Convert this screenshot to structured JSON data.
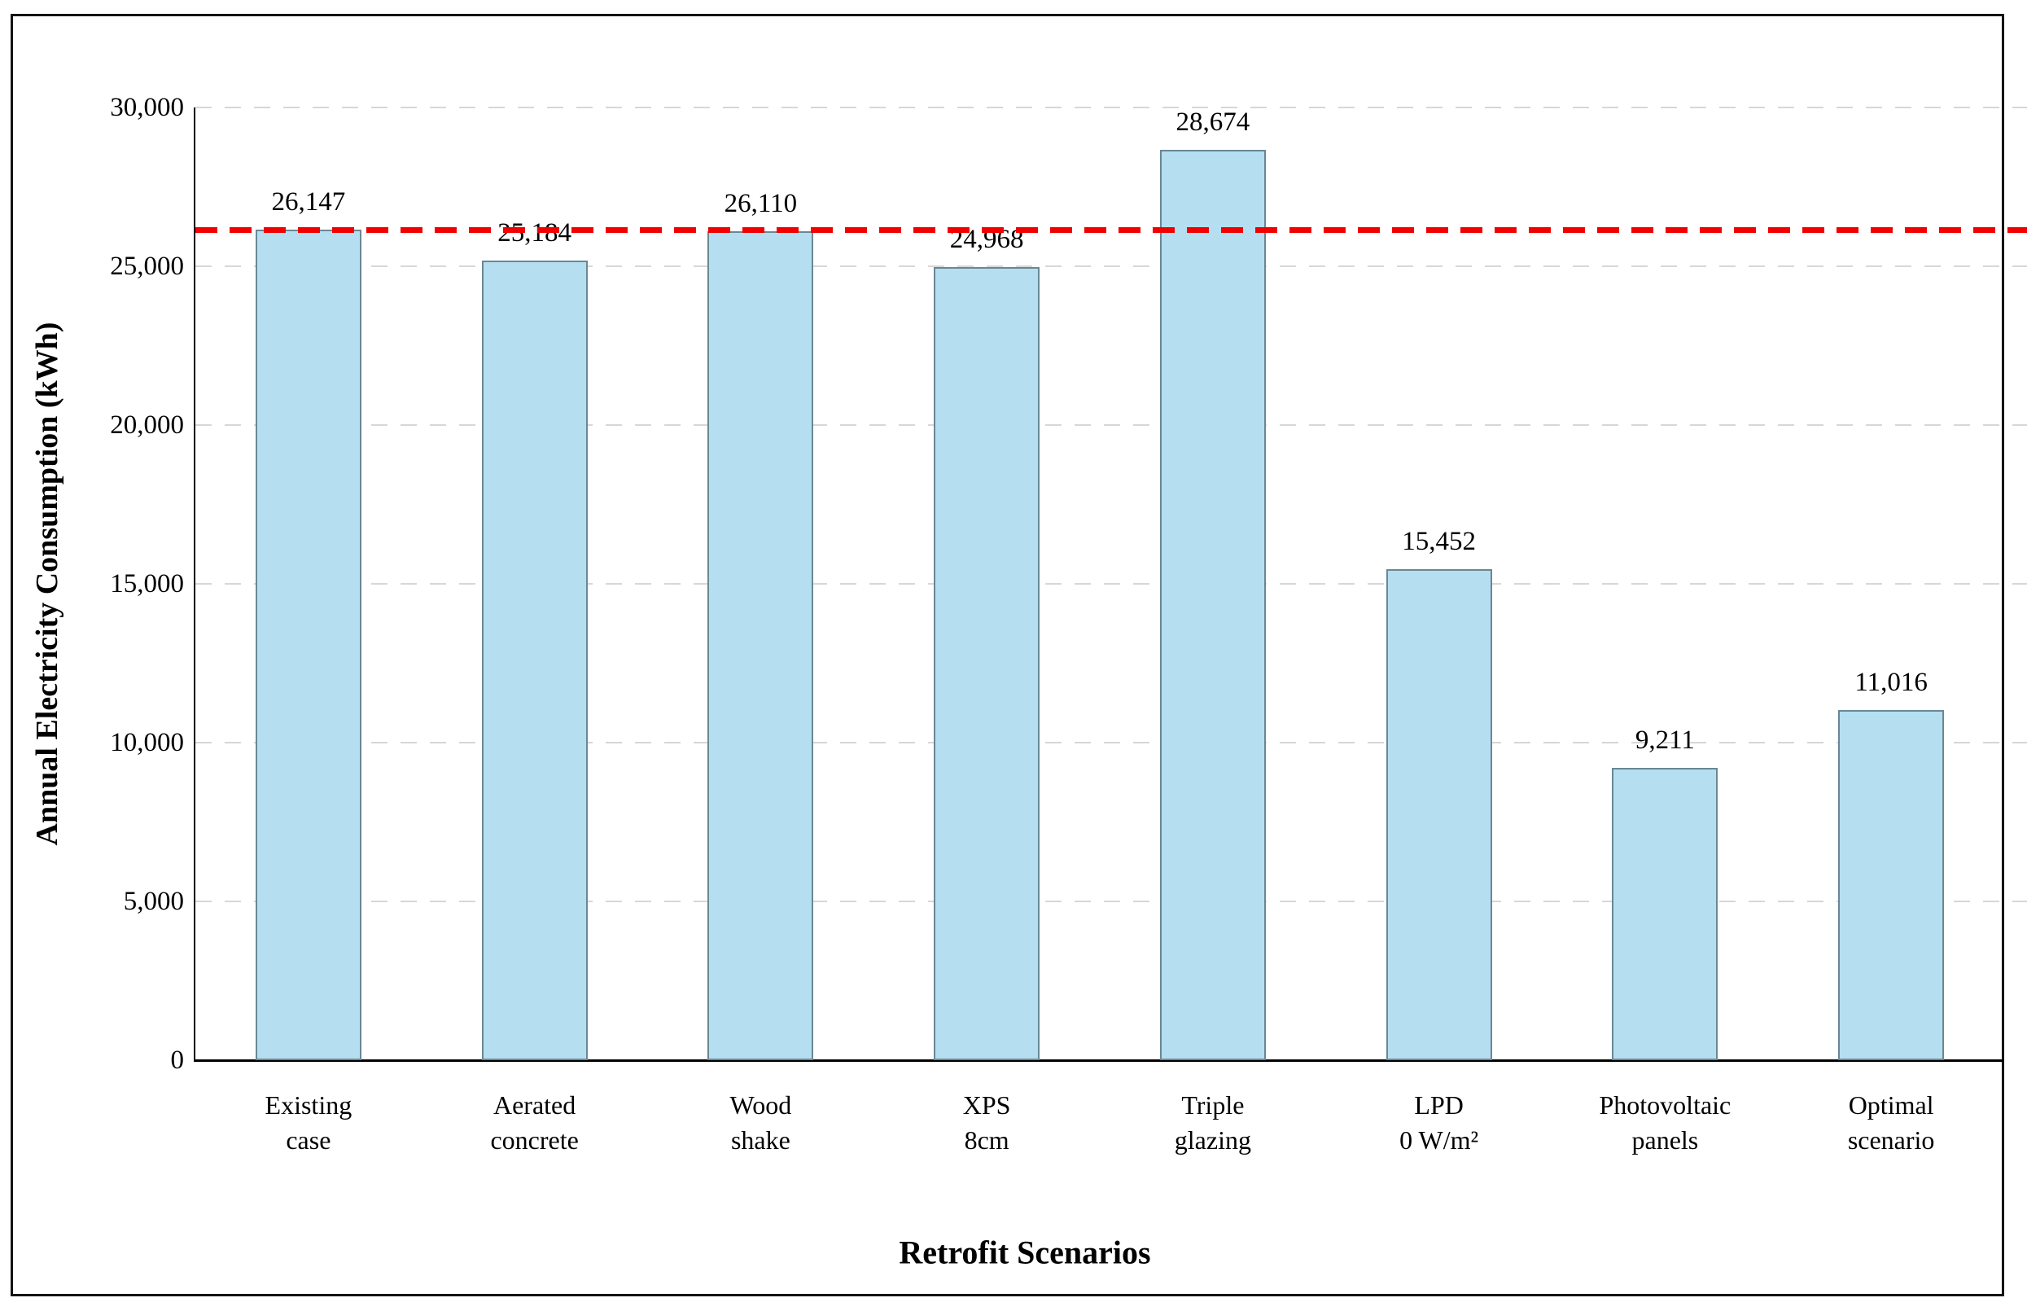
{
  "figure": {
    "background": "#FFFFFF",
    "border_color": "#141414"
  },
  "chart_data": {
    "type": "bar",
    "title": "",
    "xlabel": "Retrofit Scenarios",
    "ylabel": "Annual Electricity Consumption (kWh)",
    "categories": [
      [
        "Existing",
        "case"
      ],
      [
        "Aerated",
        "concrete"
      ],
      [
        "Wood",
        "shake"
      ],
      [
        "XPS",
        "8cm"
      ],
      [
        "Triple",
        "glazing"
      ],
      [
        "LPD",
        "0 W/m²"
      ],
      [
        "Photovoltaic",
        "panels"
      ],
      [
        "Optimal",
        "scenario"
      ]
    ],
    "values": [
      26147,
      25184,
      26110,
      24968,
      28674,
      15452,
      9211,
      11016
    ],
    "value_labels": [
      "26,147",
      "25,184",
      "26,110",
      "24,968",
      "28,674",
      "15,452",
      "9,211",
      "11,016"
    ],
    "ylim": [
      0,
      30000
    ],
    "yticks": [
      0,
      5000,
      10000,
      15000,
      20000,
      25000,
      30000
    ],
    "ytick_labels": [
      "0",
      "5,000",
      "10,000",
      "15,000",
      "20,000",
      "25,000",
      "30,000"
    ],
    "grid": {
      "axis": "y",
      "style": "dashed",
      "color": "#D7D7D7"
    },
    "legend": "none",
    "reference_line": {
      "value": 26147,
      "style": "dashed",
      "color": "#F20000"
    },
    "bar_style": {
      "fill": "#B5DFF0",
      "border": "#6A8794"
    },
    "axis_color": "#000000"
  }
}
